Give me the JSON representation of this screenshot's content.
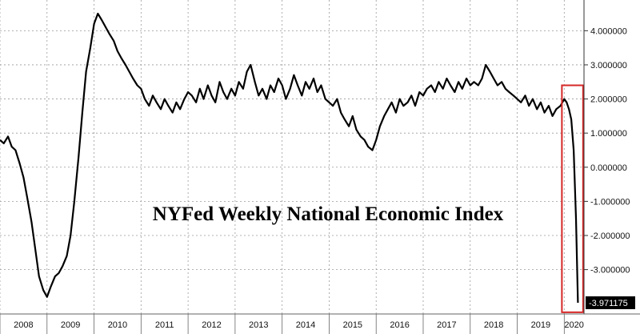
{
  "chart_data": {
    "type": "line",
    "title": "NYFed Weekly National Economic Index",
    "xlabel": "",
    "ylabel": "",
    "ylim": [
      -4.3,
      4.9
    ],
    "xlim": [
      2008.0,
      2020.42
    ],
    "grid": true,
    "x_ticks": [
      "2008",
      "2009",
      "2010",
      "2011",
      "2012",
      "2013",
      "2014",
      "2015",
      "2016",
      "2017",
      "2018",
      "2019",
      "2020"
    ],
    "y_ticks": [
      "4.000000",
      "3.000000",
      "2.000000",
      "1.000000",
      "0.000000",
      "-1.000000",
      "-2.000000",
      "-3.000000"
    ],
    "y_tick_values": [
      4,
      3,
      2,
      1,
      0,
      -1,
      -2,
      -3
    ],
    "last_value": -3.971175,
    "last_value_label": "-3.971175",
    "highlight_range": [
      2019.95,
      2020.4
    ],
    "line_color": "#000000",
    "highlight_color": "#d62828",
    "series": [
      {
        "x": [
          2008.0,
          2008.08,
          2008.17,
          2008.25,
          2008.33,
          2008.42,
          2008.5,
          2008.58,
          2008.67,
          2008.75,
          2008.83,
          2008.92,
          2009.0,
          2009.08,
          2009.17,
          2009.25,
          2009.33,
          2009.42,
          2009.5,
          2009.58,
          2009.67,
          2009.75,
          2009.83,
          2009.92,
          2010.0,
          2010.08,
          2010.17,
          2010.25,
          2010.33,
          2010.42,
          2010.5,
          2010.58,
          2010.67,
          2010.75,
          2010.83,
          2010.92,
          2011.0,
          2011.08,
          2011.17,
          2011.25,
          2011.33,
          2011.42,
          2011.5,
          2011.58,
          2011.67,
          2011.75,
          2011.83,
          2011.92,
          2012.0,
          2012.08,
          2012.17,
          2012.25,
          2012.33,
          2012.42,
          2012.5,
          2012.58,
          2012.67,
          2012.75,
          2012.83,
          2012.92,
          2013.0,
          2013.08,
          2013.17,
          2013.25,
          2013.33,
          2013.42,
          2013.5,
          2013.58,
          2013.67,
          2013.75,
          2013.83,
          2013.92,
          2014.0,
          2014.08,
          2014.17,
          2014.25,
          2014.33,
          2014.42,
          2014.5,
          2014.58,
          2014.67,
          2014.75,
          2014.83,
          2014.92,
          2015.0,
          2015.08,
          2015.17,
          2015.25,
          2015.33,
          2015.42,
          2015.5,
          2015.58,
          2015.67,
          2015.75,
          2015.83,
          2015.92,
          2016.0,
          2016.08,
          2016.17,
          2016.25,
          2016.33,
          2016.42,
          2016.5,
          2016.58,
          2016.67,
          2016.75,
          2016.83,
          2016.92,
          2017.0,
          2017.08,
          2017.17,
          2017.25,
          2017.33,
          2017.42,
          2017.5,
          2017.58,
          2017.67,
          2017.75,
          2017.83,
          2017.92,
          2018.0,
          2018.08,
          2018.17,
          2018.25,
          2018.33,
          2018.42,
          2018.5,
          2018.58,
          2018.67,
          2018.75,
          2018.83,
          2018.92,
          2019.0,
          2019.08,
          2019.17,
          2019.25,
          2019.33,
          2019.42,
          2019.5,
          2019.58,
          2019.67,
          2019.75,
          2019.83,
          2019.92,
          2020.0,
          2020.05,
          2020.1,
          2020.15,
          2020.2,
          2020.25,
          2020.29
        ],
        "values": [
          0.8,
          0.7,
          0.9,
          0.6,
          0.5,
          0.1,
          -0.3,
          -0.9,
          -1.6,
          -2.4,
          -3.2,
          -3.6,
          -3.8,
          -3.5,
          -3.2,
          -3.1,
          -2.9,
          -2.6,
          -2.0,
          -1.0,
          0.3,
          1.6,
          2.8,
          3.5,
          4.2,
          4.5,
          4.3,
          4.1,
          3.9,
          3.7,
          3.4,
          3.2,
          3.0,
          2.8,
          2.6,
          2.4,
          2.3,
          2.0,
          1.8,
          2.1,
          1.9,
          1.7,
          2.0,
          1.8,
          1.6,
          1.9,
          1.7,
          2.0,
          2.2,
          2.1,
          1.9,
          2.3,
          2.0,
          2.4,
          2.1,
          1.9,
          2.5,
          2.2,
          2.0,
          2.3,
          2.1,
          2.5,
          2.3,
          2.8,
          3.0,
          2.5,
          2.1,
          2.3,
          2.0,
          2.4,
          2.2,
          2.6,
          2.4,
          2.0,
          2.3,
          2.7,
          2.4,
          2.1,
          2.5,
          2.3,
          2.6,
          2.2,
          2.4,
          2.0,
          1.9,
          1.8,
          2.0,
          1.6,
          1.4,
          1.2,
          1.5,
          1.1,
          0.9,
          0.8,
          0.6,
          0.5,
          0.8,
          1.2,
          1.5,
          1.7,
          1.9,
          1.6,
          2.0,
          1.8,
          1.9,
          2.1,
          1.8,
          2.2,
          2.1,
          2.3,
          2.4,
          2.2,
          2.5,
          2.3,
          2.6,
          2.4,
          2.2,
          2.5,
          2.3,
          2.6,
          2.4,
          2.5,
          2.4,
          2.6,
          3.0,
          2.8,
          2.6,
          2.4,
          2.5,
          2.3,
          2.2,
          2.1,
          2.0,
          1.9,
          2.1,
          1.8,
          2.0,
          1.7,
          1.9,
          1.6,
          1.8,
          1.5,
          1.7,
          1.8,
          2.0,
          1.9,
          1.7,
          1.4,
          0.5,
          -1.5,
          -3.971175
        ]
      }
    ]
  }
}
